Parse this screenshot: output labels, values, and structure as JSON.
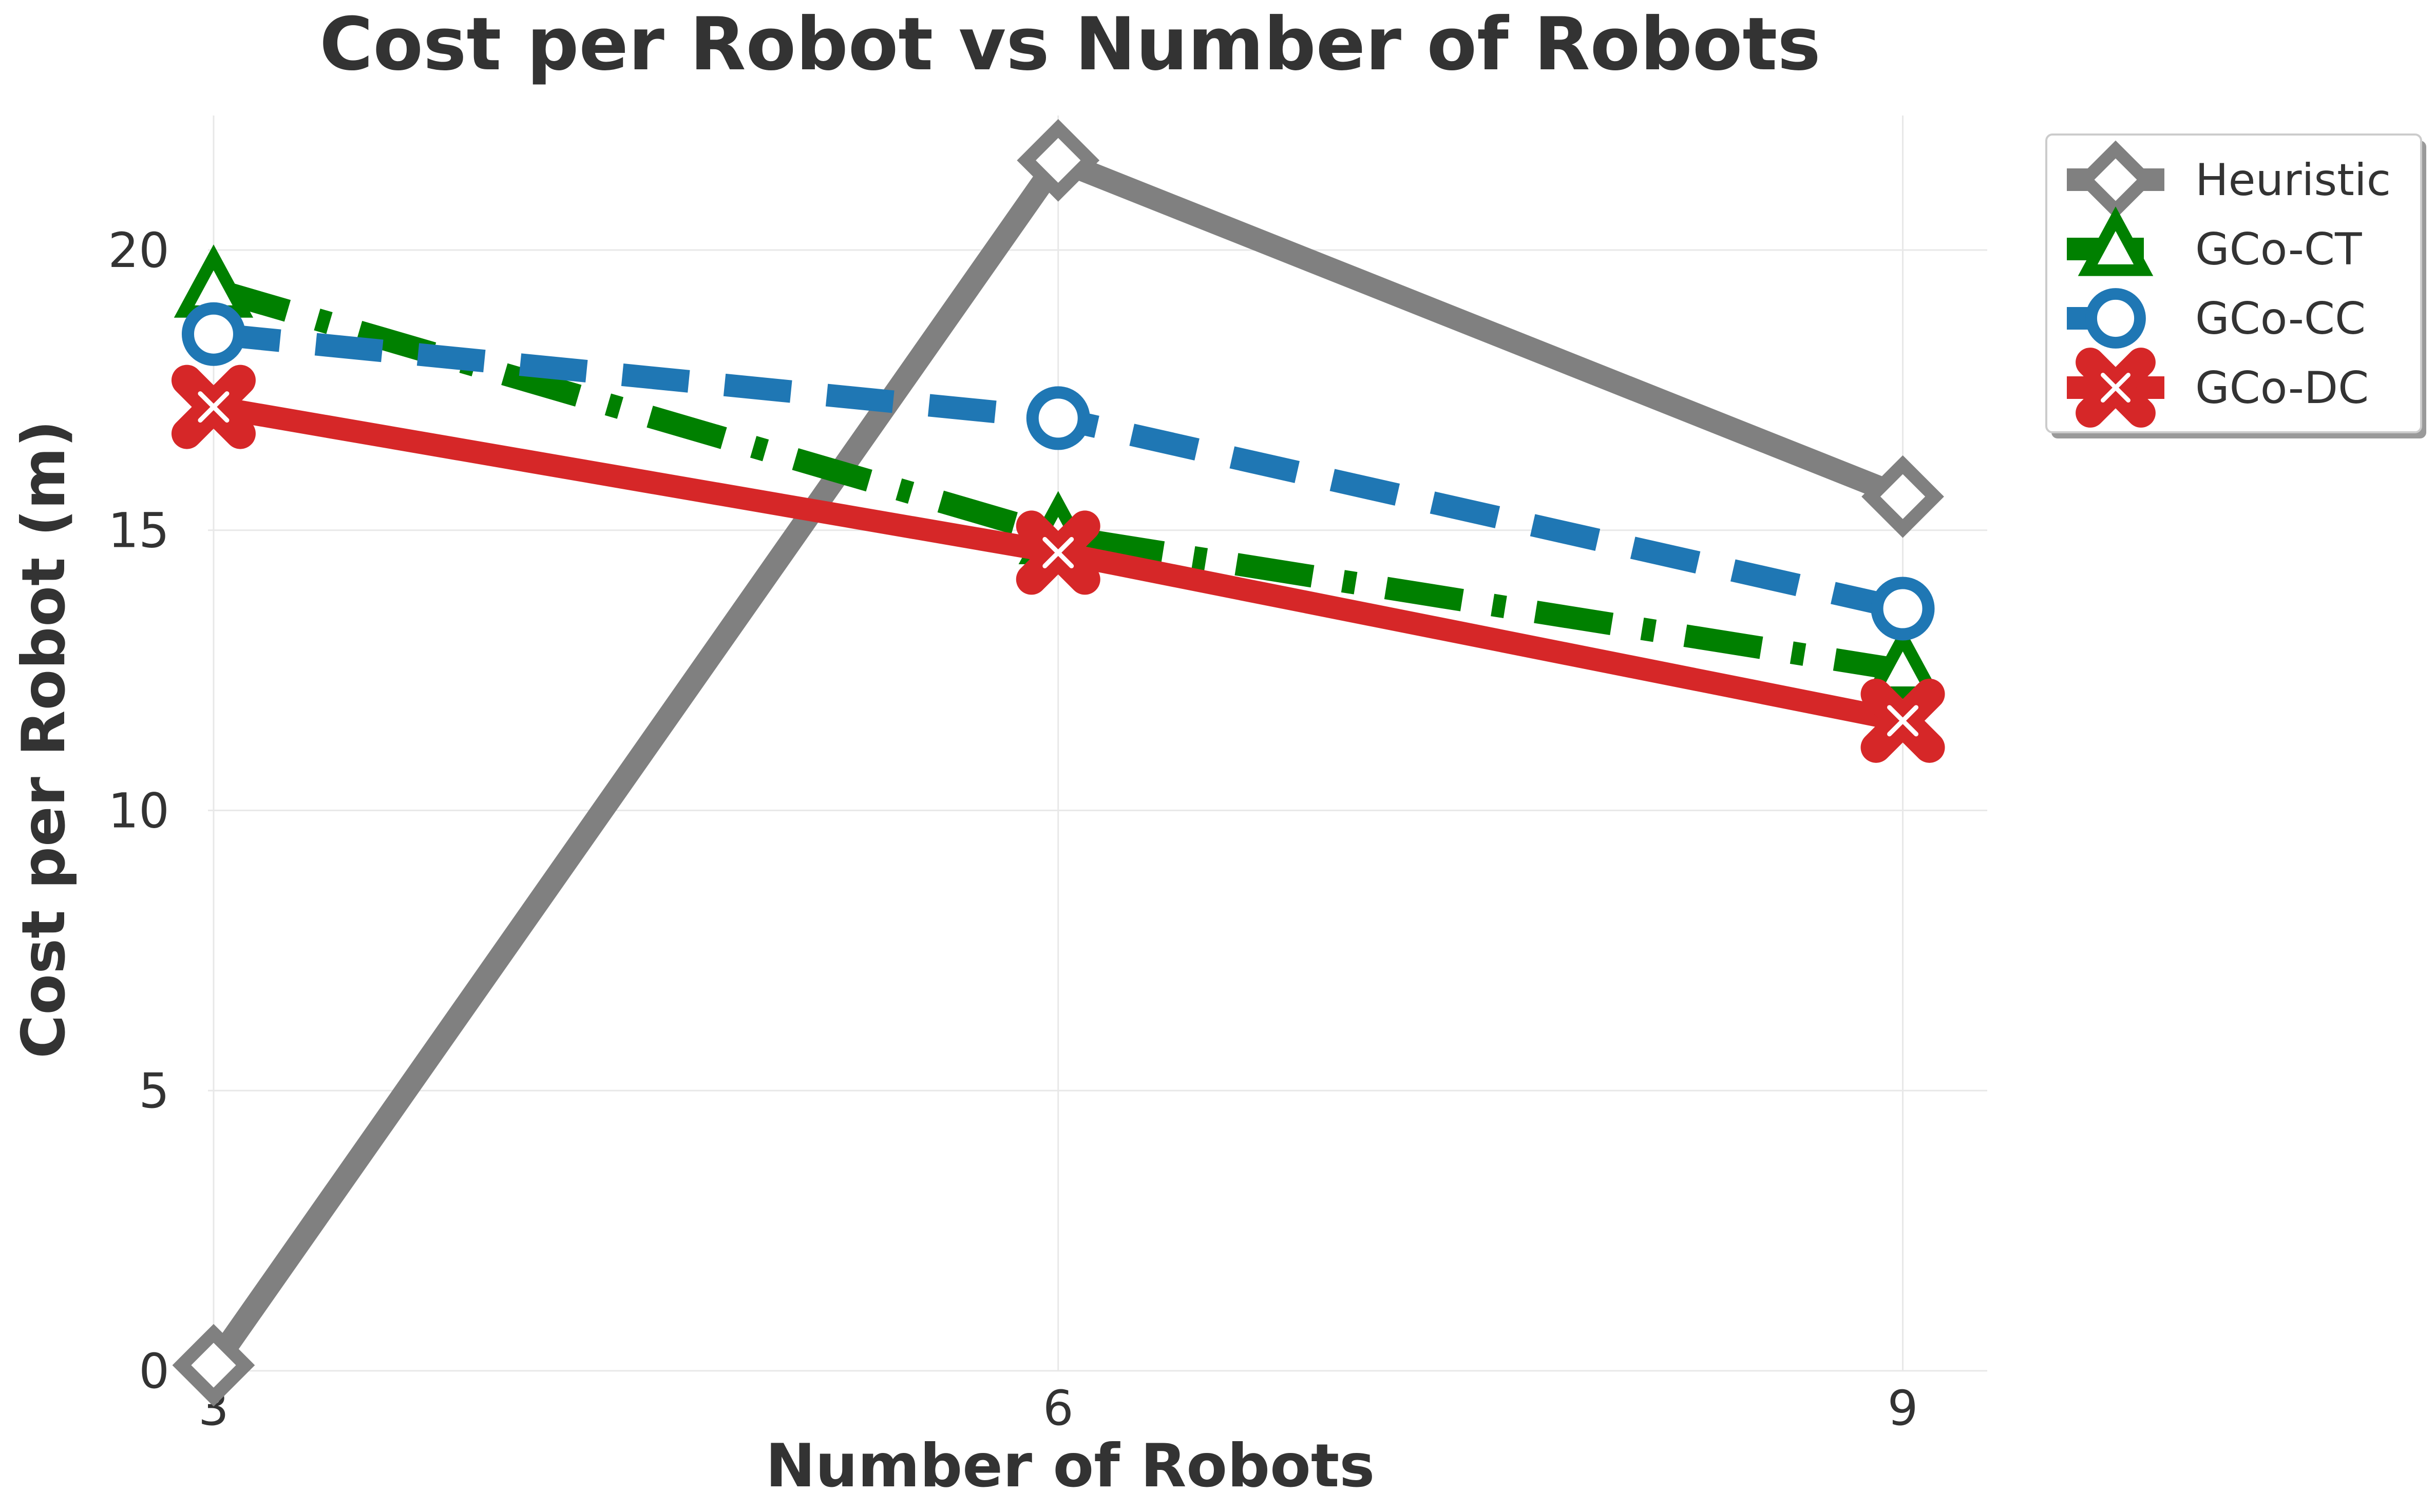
{
  "chart_data": {
    "type": "line",
    "title": "Cost per Robot vs Number of Robots",
    "xlabel": "Number of Robots",
    "ylabel": "Cost per Robot (m)",
    "x": [
      3,
      6,
      9
    ],
    "xlim": [
      2.98,
      9.3
    ],
    "ylim": [
      0,
      22.4
    ],
    "xticks": [
      3,
      6,
      9
    ],
    "yticks": [
      0,
      5,
      10,
      15,
      20
    ],
    "grid": true,
    "legend_position": "top-right",
    "series": [
      {
        "name": "Heuristic",
        "values": [
          0.1,
          21.6,
          15.6
        ],
        "color": "#808080",
        "marker": "diamond",
        "linestyle": "solid"
      },
      {
        "name": "GCo-CT",
        "values": [
          19.3,
          14.9,
          12.5
        ],
        "color": "#008000",
        "marker": "triangle",
        "linestyle": "dashdot"
      },
      {
        "name": "GCo-CC",
        "values": [
          18.5,
          17.0,
          13.6
        ],
        "color": "#1f77b4",
        "marker": "circle",
        "linestyle": "dashed"
      },
      {
        "name": "GCo-DC",
        "values": [
          17.2,
          14.6,
          11.6
        ],
        "color": "#d62728",
        "marker": "x",
        "linestyle": "solid"
      }
    ]
  }
}
